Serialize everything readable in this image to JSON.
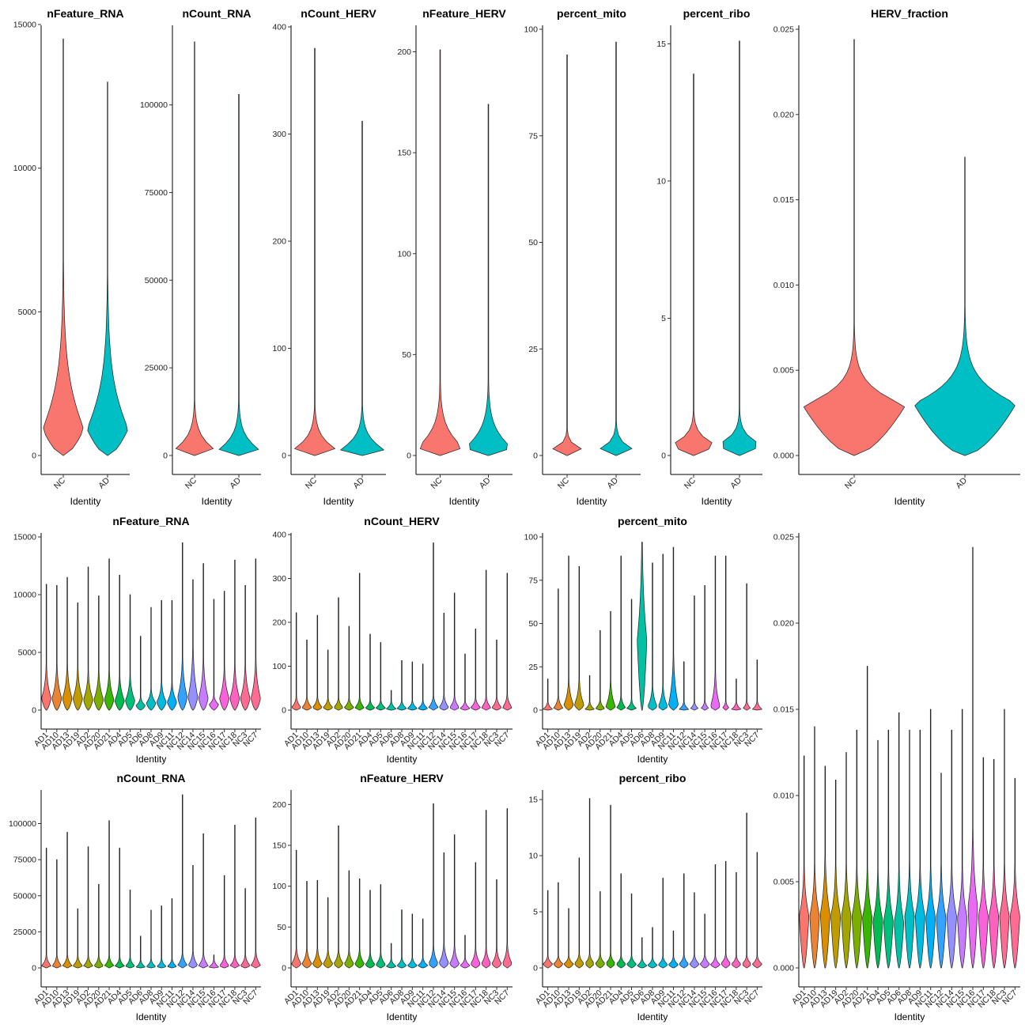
{
  "chart_data": [
    {
      "type": "violin",
      "title": "nFeature_RNA",
      "xlabel": "Identity",
      "ylim": [
        0,
        15000
      ],
      "yticks": [
        0,
        5000,
        10000,
        15000
      ],
      "categories": [
        "NC",
        "AD"
      ],
      "series": [
        {
          "name": "NC",
          "max": 14500,
          "peak": 900,
          "spread": 1600
        },
        {
          "name": "AD",
          "max": 13000,
          "peak": 900,
          "spread": 1500
        }
      ]
    },
    {
      "type": "violin",
      "title": "nCount_RNA",
      "xlabel": "Identity",
      "ylim": [
        0,
        120000
      ],
      "yticks": [
        0,
        25000,
        50000,
        75000,
        100000
      ],
      "categories": [
        "NC",
        "AD"
      ],
      "series": [
        {
          "name": "NC",
          "max": 118000,
          "peak": 1500,
          "spread": 4000
        },
        {
          "name": "AD",
          "max": 103000,
          "peak": 1500,
          "spread": 4000
        }
      ]
    },
    {
      "type": "violin",
      "title": "nCount_HERV",
      "xlabel": "Identity",
      "ylim": [
        0,
        400
      ],
      "yticks": [
        0,
        100,
        200,
        300,
        400
      ],
      "categories": [
        "NC",
        "AD"
      ],
      "series": [
        {
          "name": "NC",
          "max": 380,
          "peak": 5,
          "spread": 12
        },
        {
          "name": "AD",
          "max": 312,
          "peak": 5,
          "spread": 12
        }
      ]
    },
    {
      "type": "violin",
      "title": "nFeature_HERV",
      "xlabel": "Identity",
      "ylim": [
        0,
        210
      ],
      "yticks": [
        0,
        50,
        100,
        150,
        200
      ],
      "categories": [
        "NC",
        "AD"
      ],
      "series": [
        {
          "name": "NC",
          "max": 201,
          "peak": 4,
          "spread": 9
        },
        {
          "name": "AD",
          "max": 174,
          "peak": 4,
          "spread": 9
        }
      ]
    },
    {
      "type": "violin",
      "title": "percent_mito",
      "xlabel": "Identity",
      "ylim": [
        0,
        100
      ],
      "yticks": [
        0,
        25,
        50,
        75,
        100
      ],
      "categories": [
        "NC",
        "AD"
      ],
      "series": [
        {
          "name": "NC",
          "max": 94,
          "peak": 0.8,
          "spread": 1.5
        },
        {
          "name": "AD",
          "max": 97,
          "peak": 0.8,
          "spread": 2
        }
      ]
    },
    {
      "type": "violin",
      "title": "percent_ribo",
      "xlabel": "Identity",
      "ylim": [
        0,
        15.5
      ],
      "yticks": [
        0,
        5,
        10,
        15
      ],
      "categories": [
        "NC",
        "AD"
      ],
      "series": [
        {
          "name": "NC",
          "max": 13.9,
          "peak": 0.4,
          "spread": 0.35
        },
        {
          "name": "AD",
          "max": 15.1,
          "peak": 0.4,
          "spread": 0.35
        }
      ]
    },
    {
      "type": "violin",
      "title": "HERV_fraction",
      "xlabel": "Identity",
      "ylim": [
        0,
        0.025
      ],
      "yticks": [
        0.0,
        0.005,
        0.01,
        0.015,
        0.02,
        0.025
      ],
      "categories": [
        "NC",
        "AD"
      ],
      "series": [
        {
          "name": "NC",
          "max": 0.0244,
          "peak": 0.0029,
          "spread": 0.0011
        },
        {
          "name": "AD",
          "max": 0.0175,
          "peak": 0.003,
          "spread": 0.0013
        }
      ]
    },
    {
      "type": "violin",
      "title": "nFeature_RNA",
      "xlabel": "Identity",
      "ylim": [
        0,
        15000
      ],
      "yticks": [
        0,
        5000,
        10000,
        15000
      ],
      "categories": [
        "AD1",
        "AD10",
        "AD13",
        "AD19",
        "AD2",
        "AD20",
        "AD21",
        "AD4",
        "AD5",
        "AD6",
        "AD8",
        "AD9",
        "NC11",
        "NC12",
        "NC14",
        "NC15",
        "NC16",
        "NC17",
        "NC18",
        "NC3",
        "NC7"
      ],
      "max": [
        10900,
        10800,
        11500,
        9300,
        12400,
        9900,
        13100,
        11700,
        10000,
        6400,
        8900,
        9500,
        9500,
        14500,
        11300,
        12700,
        9600,
        10300,
        13000,
        10800,
        13100
      ],
      "peak": [
        1000,
        1000,
        1000,
        1000,
        900,
        900,
        900,
        800,
        800,
        400,
        600,
        700,
        700,
        1100,
        1100,
        1000,
        500,
        1000,
        1000,
        1000,
        1000
      ],
      "spread": [
        1200,
        1200,
        1200,
        1100,
        1000,
        1000,
        1000,
        900,
        900,
        300,
        500,
        700,
        700,
        1400,
        1800,
        1400,
        300,
        1100,
        1200,
        1200,
        1400
      ]
    },
    {
      "type": "violin",
      "title": "nCount_HERV",
      "xlabel": "Identity",
      "ylim": [
        0,
        400
      ],
      "yticks": [
        0,
        100,
        200,
        300,
        400
      ],
      "categories": [
        "AD1",
        "AD10",
        "AD13",
        "AD19",
        "AD2",
        "AD20",
        "AD21",
        "AD4",
        "AD5",
        "AD6",
        "AD8",
        "AD9",
        "NC11",
        "NC12",
        "NC14",
        "NC15",
        "NC16",
        "NC17",
        "NC18",
        "NC3",
        "NC7"
      ],
      "max": [
        222,
        160,
        216,
        137,
        256,
        191,
        312,
        173,
        154,
        45,
        113,
        110,
        105,
        381,
        221,
        267,
        128,
        185,
        319,
        160,
        312
      ],
      "peak": [
        6,
        6,
        6,
        6,
        6,
        6,
        6,
        5,
        5,
        3,
        4,
        4,
        4,
        6,
        6,
        6,
        4,
        6,
        6,
        6,
        6
      ],
      "spread": [
        10,
        10,
        10,
        9,
        9,
        9,
        9,
        7,
        7,
        3,
        5,
        5,
        5,
        11,
        12,
        11,
        5,
        9,
        10,
        10,
        12
      ]
    },
    {
      "type": "violin",
      "title": "percent_mito",
      "xlabel": "Identity",
      "ylim": [
        0,
        100
      ],
      "yticks": [
        0,
        25,
        50,
        75,
        100
      ],
      "categories": [
        "AD1",
        "AD10",
        "AD13",
        "AD19",
        "AD2",
        "AD20",
        "AD21",
        "AD4",
        "AD5",
        "AD6",
        "AD8",
        "AD9",
        "NC11",
        "NC12",
        "NC14",
        "NC15",
        "NC16",
        "NC17",
        "NC18",
        "NC3",
        "NC7"
      ],
      "max": [
        18,
        70,
        89,
        83,
        20,
        46,
        57,
        89,
        64,
        97,
        85,
        90,
        94,
        28,
        66,
        72,
        89,
        89,
        18,
        73,
        29
      ],
      "peak": [
        0.5,
        1,
        3,
        3,
        0.5,
        1,
        2,
        1,
        1,
        40,
        2,
        2,
        3,
        0.5,
        0.5,
        0.5,
        2,
        0.5,
        0.5,
        0.5,
        0.5
      ],
      "spread": [
        1,
        3,
        6,
        6,
        1,
        2,
        6,
        3,
        2,
        25,
        5,
        5,
        12,
        1,
        1,
        2,
        8,
        1,
        1,
        2,
        2
      ]
    },
    {
      "type": "violin",
      "title": "nCount_RNA",
      "xlabel": "Identity",
      "ylim": [
        0,
        120000
      ],
      "yticks": [
        0,
        25000,
        50000,
        75000,
        100000
      ],
      "categories": [
        "AD1",
        "AD10",
        "AD13",
        "AD19",
        "AD2",
        "AD20",
        "AD21",
        "AD4",
        "AD5",
        "AD6",
        "AD8",
        "AD9",
        "NC11",
        "NC12",
        "NC14",
        "NC15",
        "NC16",
        "NC17",
        "NC18",
        "NC3",
        "NC7"
      ],
      "max": [
        83000,
        75000,
        94000,
        41000,
        84000,
        58000,
        102000,
        83000,
        54000,
        22000,
        40000,
        43000,
        48000,
        120000,
        71000,
        93000,
        9000,
        64000,
        99000,
        55000,
        104000
      ],
      "peak": [
        1500,
        1500,
        1500,
        1500,
        1500,
        1500,
        1500,
        1300,
        1300,
        500,
        900,
        1000,
        1000,
        1800,
        1800,
        1600,
        600,
        1500,
        1500,
        1500,
        1700
      ],
      "spread": [
        3000,
        3000,
        3000,
        2800,
        2800,
        2800,
        2800,
        2500,
        2500,
        600,
        1400,
        1800,
        1800,
        3500,
        4000,
        3500,
        600,
        3000,
        3000,
        3200,
        4000
      ]
    },
    {
      "type": "violin",
      "title": "nFeature_HERV",
      "xlabel": "Identity",
      "ylim": [
        0,
        210
      ],
      "yticks": [
        0,
        50,
        100,
        150,
        200
      ],
      "categories": [
        "AD1",
        "AD10",
        "AD13",
        "AD19",
        "AD2",
        "AD20",
        "AD21",
        "AD4",
        "AD5",
        "AD6",
        "AD8",
        "AD9",
        "NC11",
        "NC12",
        "NC14",
        "NC15",
        "NC16",
        "NC17",
        "NC18",
        "NC3",
        "NC7"
      ],
      "max": [
        144,
        106,
        107,
        86,
        174,
        119,
        109,
        95,
        102,
        30,
        71,
        66,
        60,
        201,
        141,
        163,
        40,
        129,
        193,
        108,
        195
      ],
      "peak": [
        5,
        5,
        5,
        5,
        5,
        5,
        5,
        4,
        4,
        2,
        3,
        3,
        3,
        5,
        6,
        5,
        3,
        5,
        5,
        5,
        5
      ],
      "spread": [
        8,
        8,
        8,
        7,
        7,
        7,
        7,
        6,
        6,
        3,
        4,
        4,
        4,
        9,
        10,
        9,
        4,
        8,
        8,
        8,
        10
      ]
    },
    {
      "type": "violin",
      "title": "percent_ribo",
      "xlabel": "Identity",
      "ylim": [
        0,
        15.5
      ],
      "yticks": [
        0,
        5,
        10,
        15
      ],
      "categories": [
        "AD1",
        "AD10",
        "AD13",
        "AD19",
        "AD2",
        "AD20",
        "AD21",
        "AD4",
        "AD5",
        "AD6",
        "AD8",
        "AD9",
        "NC11",
        "NC12",
        "NC14",
        "NC15",
        "NC16",
        "NC17",
        "NC18",
        "NC3",
        "NC7"
      ],
      "max": [
        6.9,
        7.6,
        5.3,
        9.8,
        15.1,
        6.8,
        14.5,
        8.4,
        6.6,
        2.7,
        3.6,
        8.0,
        3.3,
        8.4,
        6.7,
        4.8,
        9.2,
        9.5,
        8.5,
        13.8,
        10.3
      ],
      "peak": [
        0.35,
        0.35,
        0.35,
        0.4,
        0.4,
        0.4,
        0.4,
        0.35,
        0.35,
        0.2,
        0.25,
        0.3,
        0.3,
        0.35,
        0.35,
        0.35,
        0.3,
        0.4,
        0.35,
        0.35,
        0.35
      ],
      "spread": [
        0.3,
        0.3,
        0.3,
        0.35,
        0.35,
        0.35,
        0.35,
        0.3,
        0.3,
        0.2,
        0.25,
        0.3,
        0.3,
        0.35,
        0.35,
        0.35,
        0.3,
        0.35,
        0.3,
        0.3,
        0.3
      ]
    },
    {
      "type": "violin",
      "title": "",
      "xlabel": "Identity",
      "ylim": [
        0,
        0.025
      ],
      "yticks": [
        0.0,
        0.005,
        0.01,
        0.015,
        0.02,
        0.025
      ],
      "categories": [
        "AD1",
        "AD10",
        "AD13",
        "AD19",
        "AD2",
        "AD20",
        "AD21",
        "AD4",
        "AD5",
        "AD6",
        "AD8",
        "AD9",
        "NC11",
        "NC12",
        "NC14",
        "NC15",
        "NC16",
        "NC17",
        "NC18",
        "NC3",
        "NC7"
      ],
      "max": [
        0.0123,
        0.014,
        0.0117,
        0.0109,
        0.0125,
        0.0138,
        0.0175,
        0.0132,
        0.0138,
        0.0148,
        0.0138,
        0.0138,
        0.015,
        0.0113,
        0.0138,
        0.015,
        0.0244,
        0.0122,
        0.0121,
        0.015,
        0.011
      ],
      "peak": [
        0.003,
        0.003,
        0.0031,
        0.003,
        0.003,
        0.003,
        0.0029,
        0.0027,
        0.0027,
        0.0026,
        0.003,
        0.003,
        0.0029,
        0.0029,
        0.003,
        0.0029,
        0.0035,
        0.003,
        0.003,
        0.003,
        0.003
      ],
      "spread": [
        0.0012,
        0.0012,
        0.0014,
        0.0012,
        0.0012,
        0.0012,
        0.0012,
        0.0012,
        0.0012,
        0.0013,
        0.0012,
        0.0012,
        0.0012,
        0.0012,
        0.0012,
        0.0012,
        0.0018,
        0.0012,
        0.0012,
        0.0012,
        0.0012
      ]
    }
  ],
  "colors": {
    "two_groups": [
      "#F8766D",
      "#00BFC4"
    ],
    "samples": [
      "#F8766D",
      "#EB8335",
      "#D89000",
      "#BF9D00",
      "#A3A500",
      "#7CAE00",
      "#39B600",
      "#00BB4E",
      "#00BF7D",
      "#00C1A3",
      "#00BFC4",
      "#00BAE0",
      "#00B0F6",
      "#35A2FF",
      "#9590FF",
      "#C77CFF",
      "#E76BF3",
      "#FA62DB",
      "#FF62BC",
      "#FF6C91",
      "#FF6C91"
    ]
  }
}
